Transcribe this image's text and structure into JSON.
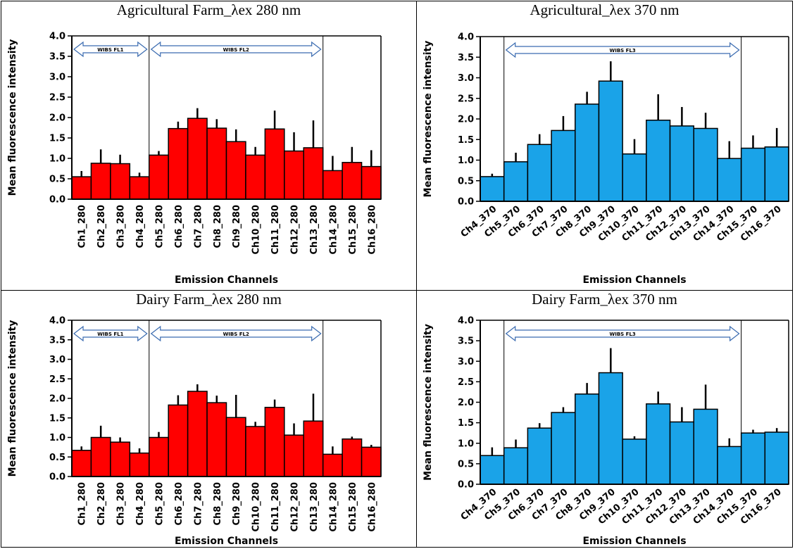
{
  "colors": {
    "red": "#ff0000",
    "blue": "#1aa3e8",
    "axis": "#000000"
  },
  "chart_data": [
    {
      "type": "bar",
      "title": "Agricultural Farm_λex 280 nm",
      "xlabel": "Emission Channels",
      "ylabel": "Mean fluorescence intensity",
      "ylim": [
        0,
        4
      ],
      "yticks": [
        "0.0",
        "0.5",
        "1.0",
        "1.5",
        "2.0",
        "2.5",
        "3.0",
        "3.5",
        "4.0"
      ],
      "categories": [
        "Ch1_280",
        "Ch2_280",
        "Ch3_280",
        "Ch4_280",
        "Ch5_280",
        "Ch6_280",
        "Ch7_280",
        "Ch8_280",
        "Ch9_280",
        "Ch10_280",
        "Ch11_280",
        "Ch12_280",
        "Ch13_280",
        "Ch14_280",
        "Ch15_280",
        "Ch16_280"
      ],
      "values": [
        0.55,
        0.88,
        0.87,
        0.55,
        1.08,
        1.73,
        1.98,
        1.74,
        1.41,
        1.08,
        1.72,
        1.18,
        1.26,
        0.7,
        0.9,
        0.8
      ],
      "errors": [
        0.14,
        0.34,
        0.22,
        0.1,
        0.1,
        0.17,
        0.25,
        0.22,
        0.3,
        0.2,
        0.45,
        0.46,
        0.67,
        0.36,
        0.38,
        0.4
      ],
      "color": "#ff0000",
      "bands": [
        {
          "label": "WIBS FL1",
          "from": 0,
          "to": 4
        },
        {
          "label": "WIBS FL2",
          "from": 4,
          "to": 13
        }
      ],
      "rotate": 90
    },
    {
      "type": "bar",
      "title": "Agricultural_λex 370 nm",
      "xlabel": "Emission Channels",
      "ylabel": "Mean fluorescence intensity",
      "ylim": [
        0,
        4
      ],
      "yticks": [
        "0.0",
        "0.5",
        "1.0",
        "1.5",
        "2.0",
        "2.5",
        "3.0",
        "3.5",
        "4.0"
      ],
      "categories": [
        "Ch4_370",
        "Ch5_370",
        "Ch6_370",
        "Ch7_370",
        "Ch8_370",
        "Ch9_370",
        "Ch10_370",
        "Ch11_370",
        "Ch12_370",
        "Ch13_370",
        "Ch14_370",
        "Ch15_370",
        "Ch16_370"
      ],
      "values": [
        0.6,
        0.96,
        1.38,
        1.72,
        2.36,
        2.92,
        1.15,
        1.97,
        1.83,
        1.77,
        1.04,
        1.29,
        1.32
      ],
      "errors": [
        0.07,
        0.22,
        0.25,
        0.35,
        0.3,
        0.48,
        0.36,
        0.63,
        0.46,
        0.38,
        0.42,
        0.31,
        0.46
      ],
      "color": "#1aa3e8",
      "bands": [
        {
          "label": "WIBS FL3",
          "from": 1,
          "to": 11
        }
      ],
      "rotate": 40
    },
    {
      "type": "bar",
      "title": "Dairy Farm_λex 280 nm",
      "xlabel": "Emission Channels",
      "ylabel": "Mean fluorescence intensity",
      "ylim": [
        0,
        4
      ],
      "yticks": [
        "0.0",
        "0.5",
        "1.0",
        "1.5",
        "2.0",
        "2.5",
        "3.0",
        "3.5",
        "4.0"
      ],
      "categories": [
        "Ch1_280",
        "Ch2_280",
        "Ch3_280",
        "Ch4_280",
        "Ch5_280",
        "Ch6_280",
        "Ch7_280",
        "Ch8_280",
        "Ch9_280",
        "Ch10_280",
        "Ch11_280",
        "Ch12_280",
        "Ch13_280",
        "Ch14_280",
        "Ch15_280",
        "Ch16_280"
      ],
      "values": [
        0.67,
        1.0,
        0.88,
        0.6,
        1.0,
        1.83,
        2.18,
        1.89,
        1.51,
        1.28,
        1.77,
        1.06,
        1.42,
        0.57,
        0.96,
        0.75
      ],
      "errors": [
        0.1,
        0.3,
        0.12,
        0.12,
        0.14,
        0.25,
        0.18,
        0.18,
        0.58,
        0.12,
        0.2,
        0.3,
        0.7,
        0.2,
        0.06,
        0.06
      ],
      "color": "#ff0000",
      "bands": [
        {
          "label": "WIBS FL1",
          "from": 0,
          "to": 4
        },
        {
          "label": "WIBS FL2",
          "from": 4,
          "to": 13
        }
      ],
      "rotate": 90
    },
    {
      "type": "bar",
      "title": "Dairy Farm_λex 370 nm",
      "xlabel": "Emission Channels",
      "ylabel": "Mean fluorescence intensity",
      "ylim": [
        0,
        4
      ],
      "yticks": [
        "0.0",
        "0.5",
        "1.0",
        "1.5",
        "2.0",
        "2.5",
        "3.0",
        "3.5",
        "4.0"
      ],
      "categories": [
        "Ch4_370",
        "Ch5_370",
        "Ch6_370",
        "Ch7_370",
        "Ch8_370",
        "Ch9_370",
        "Ch10_370",
        "Ch11_370",
        "Ch12_370",
        "Ch13_370",
        "Ch14_370",
        "Ch15_370",
        "Ch16_370"
      ],
      "values": [
        0.7,
        0.89,
        1.37,
        1.75,
        2.2,
        2.72,
        1.1,
        1.96,
        1.52,
        1.83,
        0.92,
        1.25,
        1.27
      ],
      "errors": [
        0.2,
        0.2,
        0.12,
        0.13,
        0.27,
        0.6,
        0.07,
        0.3,
        0.36,
        0.6,
        0.2,
        0.08,
        0.1
      ],
      "color": "#1aa3e8",
      "bands": [
        {
          "label": "WIBS FL3",
          "from": 1,
          "to": 11
        }
      ],
      "rotate": 40
    }
  ]
}
